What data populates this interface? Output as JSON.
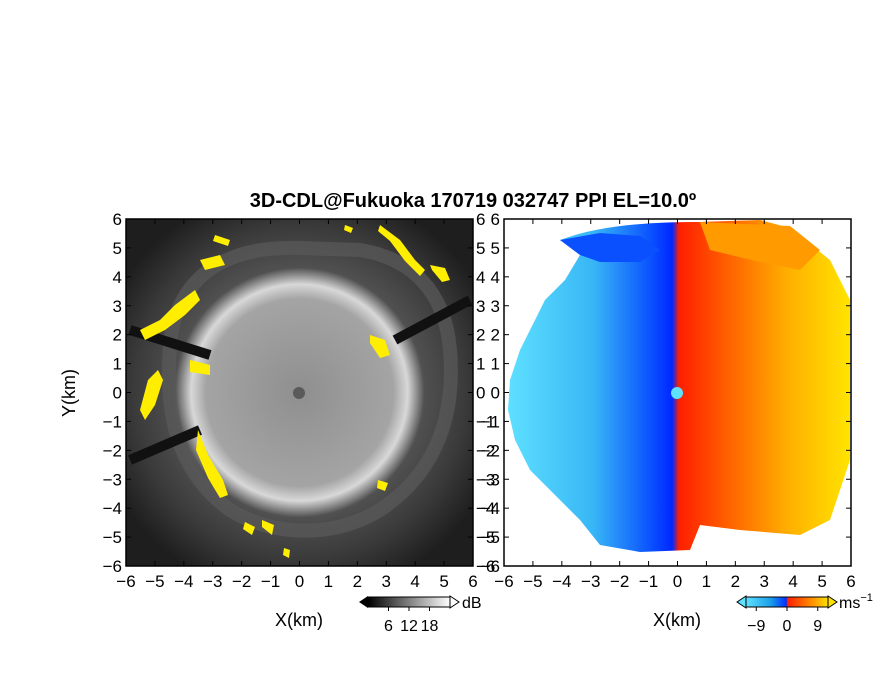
{
  "chart_data": [
    {
      "type": "heatmap",
      "title": "3D-CDL@Fukuoka 170719 032747 PPI EL=10.0º",
      "quantity": "dB",
      "xlabel": "X(km)",
      "ylabel": "Y(km)",
      "xlim": [
        -6,
        6
      ],
      "ylim": [
        -6,
        6
      ],
      "x_ticks": [
        "−6",
        "−5",
        "−4",
        "−3",
        "−2",
        "−1",
        "0",
        "1",
        "2",
        "3",
        "4",
        "5",
        "6"
      ],
      "y_ticks": [
        "−6",
        "−5",
        "−4",
        "−3",
        "−2",
        "−1",
        "0",
        "1",
        "2",
        "3",
        "4",
        "5",
        "6"
      ],
      "colormap": "grayscale",
      "highlight_color": "#ffee00",
      "colorbar": {
        "ticks": [
          "6",
          "12",
          "18"
        ],
        "unit": "dB",
        "range": [
          0,
          24
        ]
      }
    },
    {
      "type": "heatmap",
      "quantity": "ms−1",
      "xlabel": "X(km)",
      "xlim": [
        -6,
        6
      ],
      "ylim": [
        -6,
        6
      ],
      "x_ticks": [
        "−6",
        "−5",
        "−4",
        "−3",
        "−2",
        "−1",
        "0",
        "1",
        "2",
        "3",
        "4",
        "5",
        "6"
      ],
      "y_ticks": [
        "−6",
        "−5",
        "−4",
        "−3",
        "−2",
        "−1",
        "0",
        "1",
        "2",
        "3",
        "4",
        "5",
        "6"
      ],
      "colormap": [
        "#5ee0ff",
        "#1a9fe8",
        "#0030ff",
        "#ff2000",
        "#ff7a00",
        "#ffe000"
      ],
      "colorbar": {
        "ticks": [
          "−9",
          "0",
          "9"
        ],
        "unit": "ms",
        "unit_exp": "−1",
        "range": [
          -12,
          12
        ]
      }
    }
  ]
}
